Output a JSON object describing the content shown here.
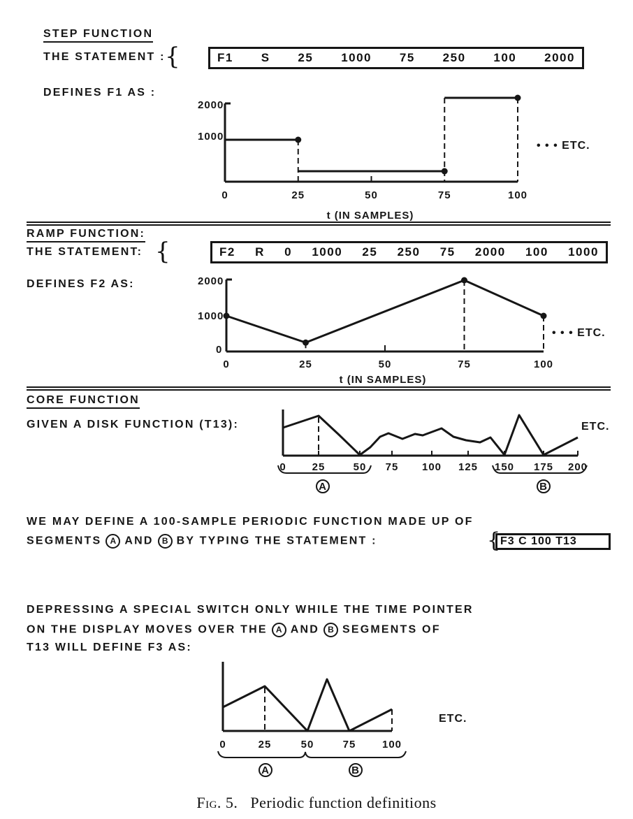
{
  "step": {
    "heading": "STEP FUNCTION",
    "statement_label": "THE STATEMENT :",
    "statement_tokens": [
      "F1",
      "S",
      "25",
      "1000",
      "75",
      "250",
      "100",
      "2000"
    ],
    "defines_label": "DEFINES F1 AS :",
    "etc": "• • • ETC.",
    "xlabel": "t (IN SAMPLES)",
    "x_ticks": [
      "0",
      "25",
      "50",
      "75",
      "100"
    ],
    "y_ticks": [
      "2000",
      "1000"
    ]
  },
  "ramp": {
    "heading": "RAMP FUNCTION:",
    "statement_label": "THE STATEMENT:",
    "statement_tokens": [
      "F2",
      "R",
      "0",
      "1000",
      "25",
      "250",
      "75",
      "2000",
      "100",
      "1000"
    ],
    "defines_label": "DEFINES F2 AS:",
    "etc": "• • • ETC.",
    "xlabel": "t (IN SAMPLES)",
    "x_ticks": [
      "0",
      "25",
      "50",
      "75",
      "100"
    ],
    "y_ticks": [
      "2000",
      "1000",
      "0"
    ]
  },
  "core": {
    "heading": "CORE FUNCTION",
    "given_label": "GIVEN A DISK FUNCTION (T13):",
    "etc": "ETC.",
    "x_ticks": [
      "0",
      "25",
      "50",
      "75",
      "100",
      "125",
      "150",
      "175",
      "200"
    ],
    "segment_a": "A",
    "segment_b": "B",
    "para1_line1": "WE MAY DEFINE A 100-SAMPLE PERIODIC FUNCTION MADE UP OF",
    "para1_line2_start": "SEGMENTS",
    "para1_line2_and": "AND",
    "para1_line2_end": "BY TYPING THE STATEMENT :",
    "statement_tokens": [
      "F3 C 100 T13"
    ],
    "para2_line1": "DEPRESSING A SPECIAL SWITCH ONLY WHILE THE TIME POINTER",
    "para2_line2_start": "ON THE DISPLAY MOVES OVER THE",
    "para2_line2_and": "AND",
    "para2_line2_end": "SEGMENTS OF",
    "para2_line3": "T13 WILL DEFINE F3 AS:",
    "f3_x_ticks": [
      "0",
      "25",
      "50",
      "75",
      "100"
    ],
    "f3_etc": "ETC."
  },
  "caption": {
    "fig": "Fig. 5.",
    "text": "Periodic function definitions"
  },
  "chart_data": [
    {
      "type": "line",
      "name": "F1 step",
      "xlabel": "t (IN SAMPLES)",
      "xlim": [
        0,
        100
      ],
      "ylim": [
        0,
        2000
      ],
      "steps": [
        {
          "from": 0,
          "to": 25,
          "value": 1000
        },
        {
          "from": 25,
          "to": 75,
          "value": 250
        },
        {
          "from": 75,
          "to": 100,
          "value": 2000
        }
      ]
    },
    {
      "type": "line",
      "name": "F2 ramp",
      "xlabel": "t (IN SAMPLES)",
      "xlim": [
        0,
        100
      ],
      "ylim": [
        0,
        2000
      ],
      "x": [
        0,
        25,
        75,
        100
      ],
      "y": [
        1000,
        250,
        2000,
        1000
      ]
    }
  ]
}
